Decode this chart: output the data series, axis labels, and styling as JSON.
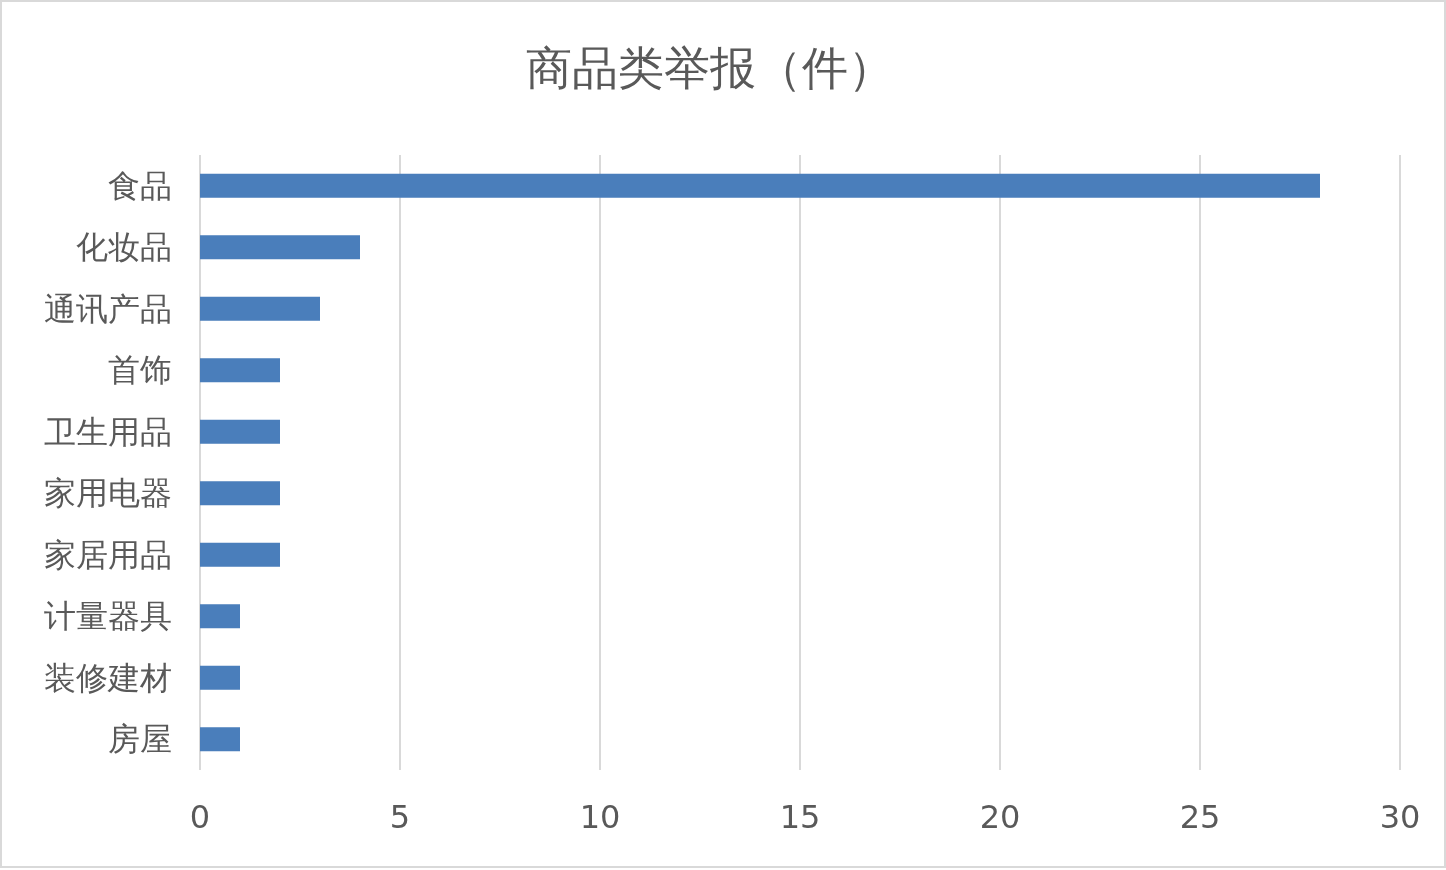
{
  "chart_data": {
    "type": "bar",
    "orientation": "horizontal",
    "title": "商品类举报（件）",
    "categories": [
      "食品",
      "化妆品",
      "通讯产品",
      "首饰",
      "卫生用品",
      "家用电器",
      "家居用品",
      "计量器具",
      "装修建材",
      "房屋"
    ],
    "values": [
      28,
      4,
      3,
      2,
      2,
      2,
      2,
      1,
      1,
      1
    ],
    "color": "#4a7ebb",
    "xlim": [
      0,
      30
    ],
    "xticks": [
      0,
      5,
      10,
      15,
      20,
      25,
      30
    ],
    "grid": "x"
  }
}
